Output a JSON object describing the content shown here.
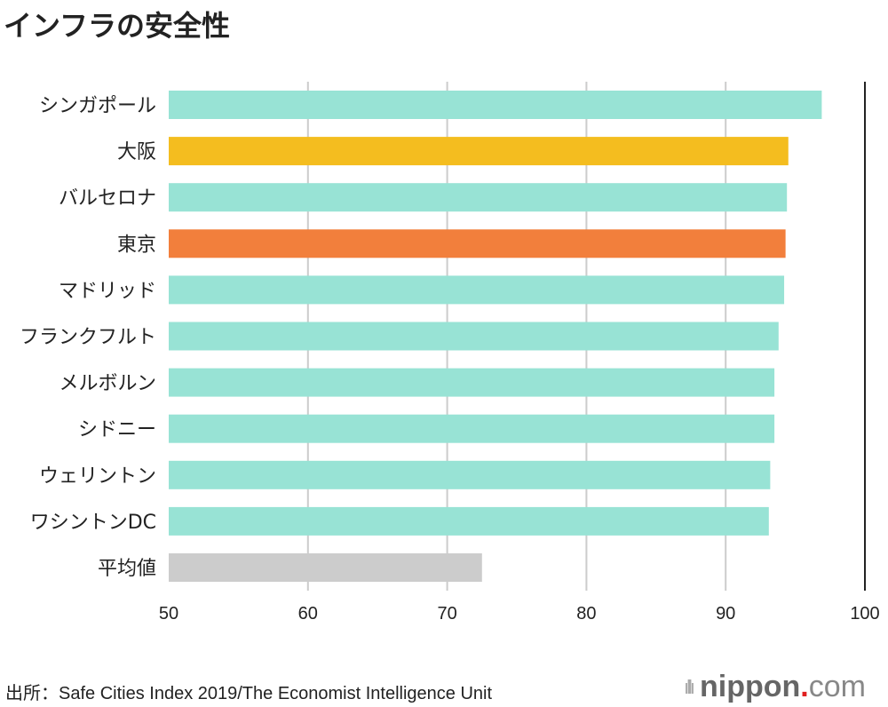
{
  "title": "インフラの安全性",
  "source": "出所：Safe Cities Index 2019/The Economist Intelligence Unit",
  "logo": {
    "bars": "ıllı",
    "name": "nippon",
    "dot": ".",
    "tld": "com"
  },
  "colors": {
    "default": "#98e3d5",
    "osaka": "#f4bd1f",
    "tokyo": "#f27f3c",
    "average": "#cccccc"
  },
  "chart_data": {
    "type": "bar",
    "orientation": "horizontal",
    "title": "インフラの安全性",
    "xlabel": "",
    "ylabel": "",
    "xlim": [
      50,
      100
    ],
    "xticks": [
      50,
      60,
      70,
      80,
      90,
      100
    ],
    "grid": true,
    "categories": [
      "シンガポール",
      "大阪",
      "バルセロナ",
      "東京",
      "マドリッド",
      "フランクフルト",
      "メルボルン",
      "シドニー",
      "ウェリントン",
      "ワシントンDC",
      "平均値"
    ],
    "values": [
      96.9,
      94.5,
      94.4,
      94.3,
      94.2,
      93.8,
      93.5,
      93.5,
      93.2,
      93.1,
      72.5
    ],
    "bar_colors": [
      "default",
      "osaka",
      "default",
      "tokyo",
      "default",
      "default",
      "default",
      "default",
      "default",
      "default",
      "average"
    ]
  }
}
